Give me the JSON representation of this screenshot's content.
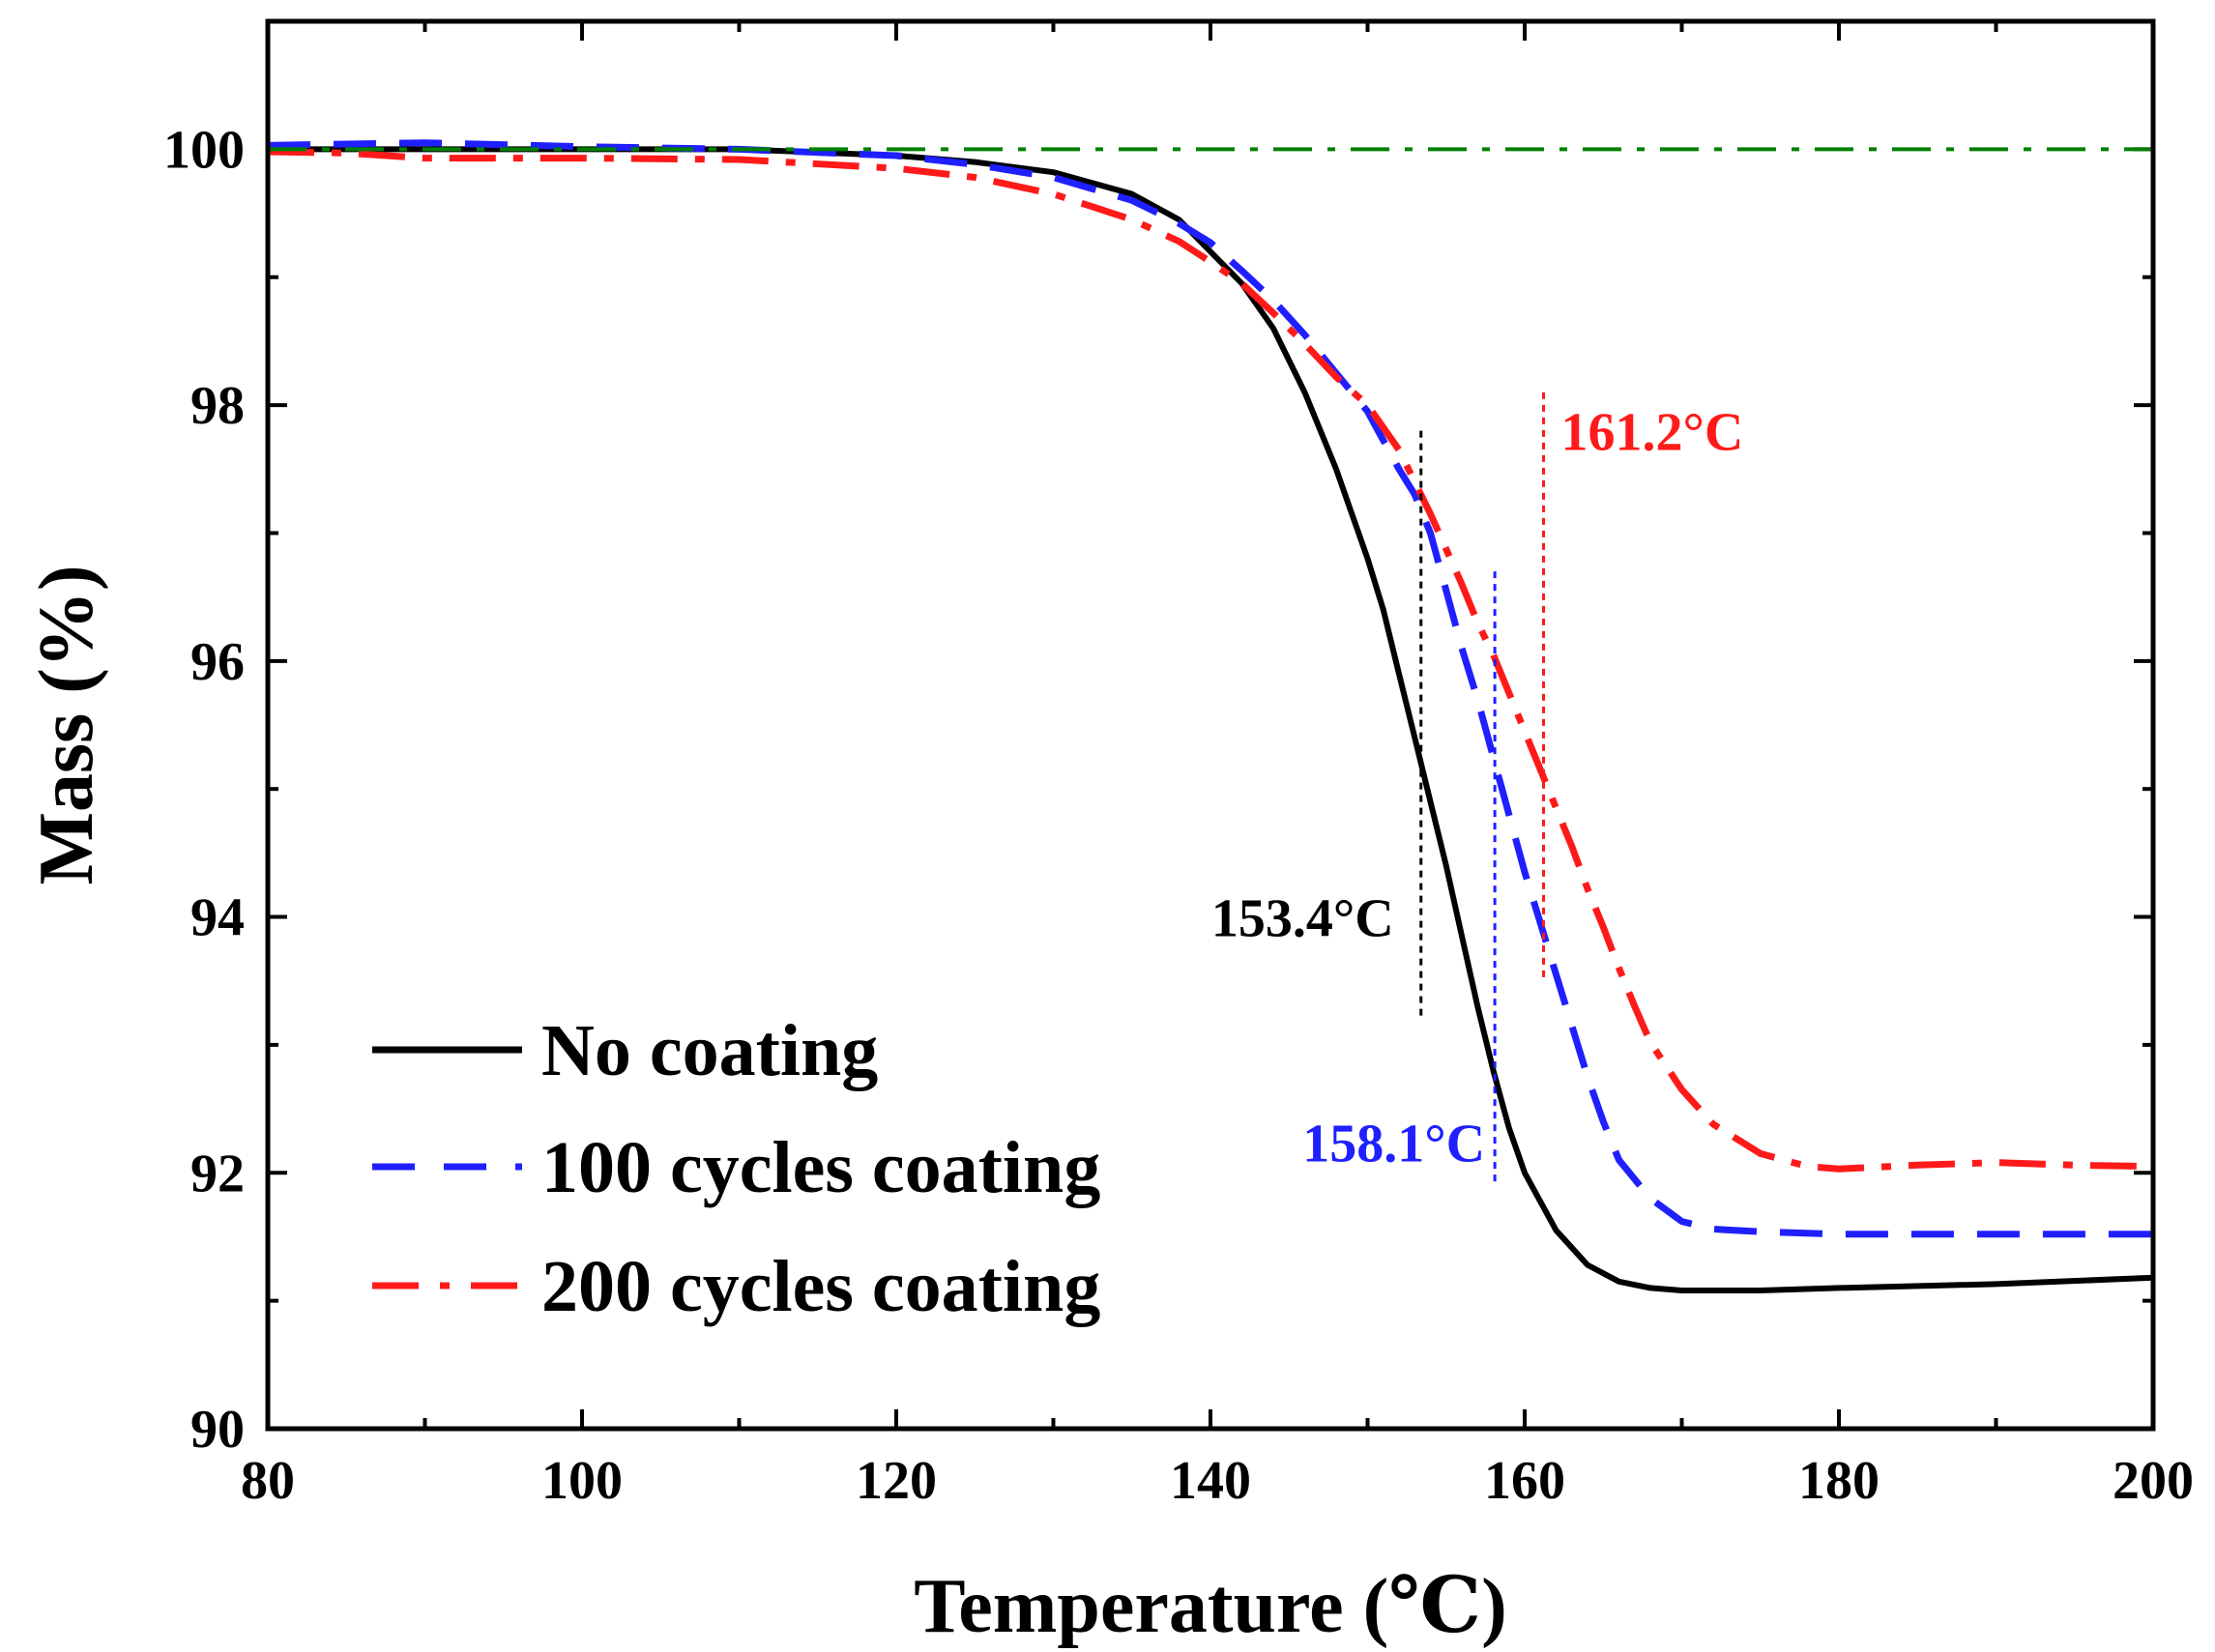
{
  "chart_data": {
    "type": "line",
    "title": "",
    "xlabel": "Temperature (℃)",
    "ylabel": "Mass (%)",
    "xlim": [
      80,
      200
    ],
    "ylim": [
      90,
      101
    ],
    "x_ticks": [
      80,
      100,
      120,
      140,
      160,
      180,
      200
    ],
    "y_ticks": [
      90,
      92,
      94,
      96,
      98,
      100
    ],
    "grid": false,
    "legend_position": "bottom-left",
    "series": [
      {
        "name": "No coating",
        "color": "#000000",
        "style": "solid",
        "points": [
          [
            80,
            100.0
          ],
          [
            100,
            100.0
          ],
          [
            110,
            100.0
          ],
          [
            120,
            99.95
          ],
          [
            125,
            99.9
          ],
          [
            130,
            99.82
          ],
          [
            135,
            99.65
          ],
          [
            138,
            99.45
          ],
          [
            140,
            99.2
          ],
          [
            142,
            98.95
          ],
          [
            144,
            98.6
          ],
          [
            146,
            98.1
          ],
          [
            148,
            97.5
          ],
          [
            150,
            96.8
          ],
          [
            151,
            96.4
          ],
          [
            152,
            95.9
          ],
          [
            153,
            95.4
          ],
          [
            154,
            94.9
          ],
          [
            155,
            94.4
          ],
          [
            156,
            93.85
          ],
          [
            157,
            93.3
          ],
          [
            158,
            92.8
          ],
          [
            159,
            92.35
          ],
          [
            160,
            92.0
          ],
          [
            162,
            91.55
          ],
          [
            164,
            91.28
          ],
          [
            166,
            91.15
          ],
          [
            168,
            91.1
          ],
          [
            170,
            91.08
          ],
          [
            175,
            91.08
          ],
          [
            180,
            91.1
          ],
          [
            190,
            91.13
          ],
          [
            200,
            91.18
          ]
        ]
      },
      {
        "name": "100 cycles coating",
        "color": "#1f1fff",
        "style": "dashed",
        "points": [
          [
            80,
            100.03
          ],
          [
            90,
            100.05
          ],
          [
            100,
            100.02
          ],
          [
            110,
            100.0
          ],
          [
            120,
            99.95
          ],
          [
            125,
            99.88
          ],
          [
            130,
            99.78
          ],
          [
            135,
            99.6
          ],
          [
            138,
            99.42
          ],
          [
            140,
            99.27
          ],
          [
            142,
            99.05
          ],
          [
            144,
            98.82
          ],
          [
            146,
            98.55
          ],
          [
            148,
            98.25
          ],
          [
            150,
            97.95
          ],
          [
            152,
            97.5
          ],
          [
            153,
            97.3
          ],
          [
            154,
            97.0
          ],
          [
            155,
            96.55
          ],
          [
            156,
            96.1
          ],
          [
            157,
            95.7
          ],
          [
            158,
            95.25
          ],
          [
            159,
            94.8
          ],
          [
            160,
            94.35
          ],
          [
            161,
            93.95
          ],
          [
            162,
            93.55
          ],
          [
            163,
            93.15
          ],
          [
            164,
            92.75
          ],
          [
            165,
            92.4
          ],
          [
            166,
            92.1
          ],
          [
            168,
            91.8
          ],
          [
            170,
            91.62
          ],
          [
            172,
            91.56
          ],
          [
            175,
            91.54
          ],
          [
            180,
            91.52
          ],
          [
            200,
            91.52
          ]
        ]
      },
      {
        "name": "200 cycles coating",
        "color": "#ff1a1a",
        "style": "dashdot",
        "points": [
          [
            80,
            99.98
          ],
          [
            85,
            99.97
          ],
          [
            90,
            99.93
          ],
          [
            100,
            99.93
          ],
          [
            110,
            99.92
          ],
          [
            120,
            99.85
          ],
          [
            125,
            99.78
          ],
          [
            130,
            99.65
          ],
          [
            135,
            99.45
          ],
          [
            138,
            99.28
          ],
          [
            140,
            99.12
          ],
          [
            142,
            98.95
          ],
          [
            144,
            98.72
          ],
          [
            146,
            98.48
          ],
          [
            148,
            98.22
          ],
          [
            150,
            98.0
          ],
          [
            152,
            97.65
          ],
          [
            154,
            97.15
          ],
          [
            156,
            96.6
          ],
          [
            157,
            96.3
          ],
          [
            158,
            96.05
          ],
          [
            159,
            95.75
          ],
          [
            160,
            95.45
          ],
          [
            161,
            95.15
          ],
          [
            162,
            94.85
          ],
          [
            163,
            94.55
          ],
          [
            164,
            94.22
          ],
          [
            165,
            93.92
          ],
          [
            166,
            93.6
          ],
          [
            167,
            93.3
          ],
          [
            168,
            93.02
          ],
          [
            170,
            92.65
          ],
          [
            172,
            92.38
          ],
          [
            175,
            92.15
          ],
          [
            178,
            92.05
          ],
          [
            180,
            92.03
          ],
          [
            185,
            92.06
          ],
          [
            190,
            92.08
          ],
          [
            195,
            92.06
          ],
          [
            200,
            92.05
          ]
        ]
      },
      {
        "name": "",
        "color": "#008000",
        "style": "dashdot",
        "points": [
          [
            80,
            100.0
          ],
          [
            200,
            100.0
          ]
        ]
      }
    ],
    "markers": [
      {
        "label": "153.4°C",
        "x": 153.4,
        "y_range": [
          93.2,
          97.8
        ],
        "color": "#000000"
      },
      {
        "label": "158.1°C",
        "x": 158.1,
        "y_range": [
          91.9,
          96.7
        ],
        "color": "#1f1fff"
      },
      {
        "label": "161.2°C",
        "x": 161.2,
        "y_range": [
          93.5,
          98.1
        ],
        "color": "#ff1a1a"
      }
    ],
    "legend": [
      {
        "label": "No coating",
        "color": "#000000",
        "style": "solid"
      },
      {
        "label": "100 cycles coating",
        "color": "#1f1fff",
        "style": "dashed"
      },
      {
        "label": "200 cycles coating",
        "color": "#ff1a1a",
        "style": "dashdot"
      }
    ]
  }
}
